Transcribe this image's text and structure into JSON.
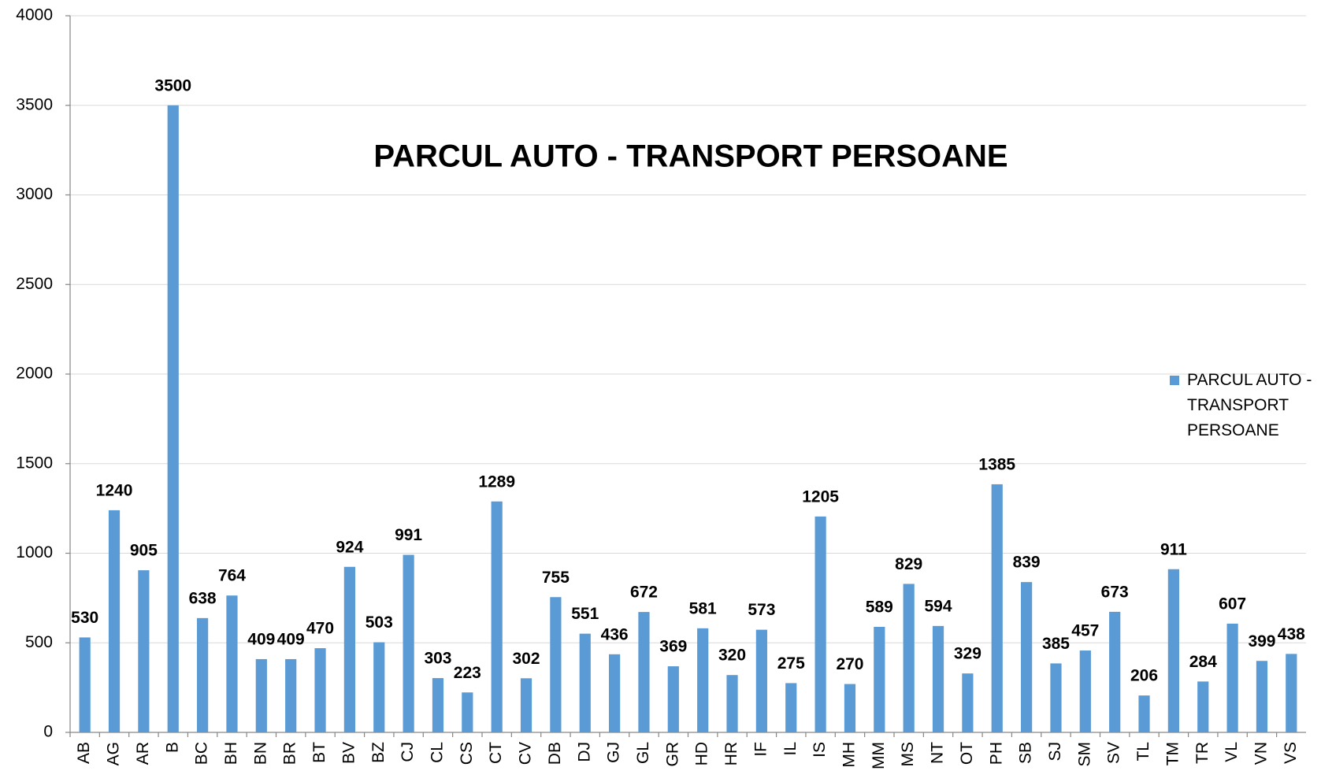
{
  "chart_data": {
    "type": "bar",
    "title": "PARCUL AUTO - TRANSPORT PERSOANE",
    "categories": [
      "AB",
      "AG",
      "AR",
      "B",
      "BC",
      "BH",
      "BN",
      "BR",
      "BT",
      "BV",
      "BZ",
      "CJ",
      "CL",
      "CS",
      "CT",
      "CV",
      "DB",
      "DJ",
      "GJ",
      "GL",
      "GR",
      "HD",
      "HR",
      "IF",
      "IL",
      "IS",
      "MH",
      "MM",
      "MS",
      "NT",
      "OT",
      "PH",
      "SB",
      "SJ",
      "SM",
      "SV",
      "TL",
      "TM",
      "TR",
      "VL",
      "VN",
      "VS"
    ],
    "series": [
      {
        "name": "PARCUL AUTO - TRANSPORT PERSOANE",
        "color": "#5b9bd5",
        "values": [
          530,
          1240,
          905,
          3500,
          638,
          764,
          409,
          409,
          470,
          924,
          503,
          991,
          303,
          223,
          1289,
          302,
          755,
          551,
          436,
          672,
          369,
          581,
          320,
          573,
          275,
          1205,
          270,
          589,
          829,
          594,
          329,
          1385,
          839,
          385,
          457,
          673,
          206,
          911,
          284,
          607,
          399,
          438
        ]
      }
    ],
    "ylim": [
      0,
      4000
    ],
    "yticks": [
      0,
      500,
      1000,
      1500,
      2000,
      2500,
      3000,
      3500,
      4000
    ],
    "grid": true,
    "legend": "right"
  }
}
